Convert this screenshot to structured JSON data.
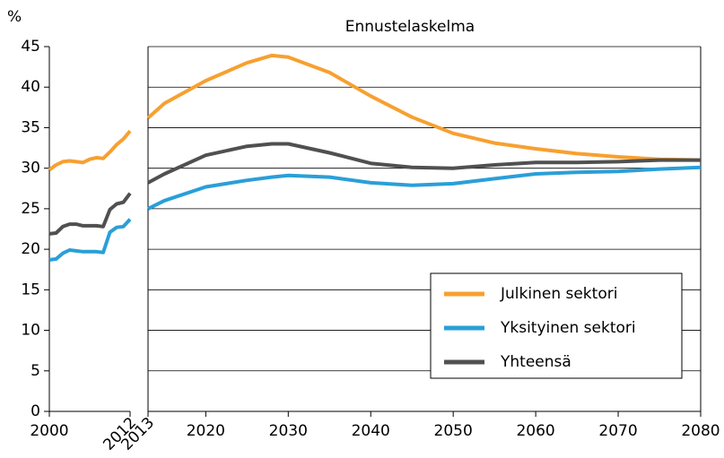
{
  "chart_data": [
    {
      "type": "line",
      "y_label": "%",
      "x": [
        2000,
        2001,
        2002,
        2003,
        2004,
        2005,
        2006,
        2007,
        2008,
        2009,
        2010,
        2011,
        2012
      ],
      "series": [
        {
          "color": "#f7a030",
          "values": [
            29.8,
            30.4,
            30.8,
            30.9,
            30.8,
            30.7,
            31.1,
            31.3,
            31.2,
            32.0,
            32.9,
            33.6,
            34.6
          ]
        },
        {
          "color": "#2a9fd8",
          "values": [
            18.7,
            18.8,
            19.5,
            19.9,
            19.8,
            19.7,
            19.7,
            19.7,
            19.6,
            22.1,
            22.7,
            22.8,
            23.7
          ]
        },
        {
          "color": "#505050",
          "values": [
            21.9,
            22.0,
            22.8,
            23.1,
            23.1,
            22.9,
            22.9,
            22.9,
            22.8,
            24.9,
            25.6,
            25.8,
            26.9
          ]
        }
      ],
      "xlim": [
        2000,
        2012
      ],
      "xticks": [
        2000,
        2012
      ],
      "ylim": [
        0,
        45
      ],
      "yticks": [
        0,
        5,
        10,
        15,
        20,
        25,
        30,
        35,
        40,
        45
      ],
      "grid": false
    },
    {
      "type": "line",
      "title": "Ennustelaskelma",
      "x": [
        2013,
        2015,
        2020,
        2025,
        2028,
        2030,
        2035,
        2040,
        2045,
        2050,
        2055,
        2060,
        2065,
        2070,
        2075,
        2080
      ],
      "series": [
        {
          "name": "Julkinen sektori",
          "color": "#f7a030",
          "values": [
            36.2,
            38.0,
            40.8,
            43.0,
            43.9,
            43.7,
            41.8,
            38.9,
            36.3,
            34.3,
            33.1,
            32.4,
            31.8,
            31.4,
            31.1,
            31.0
          ]
        },
        {
          "name": "Yksityinen sektori",
          "color": "#2a9fd8",
          "values": [
            25.0,
            26.0,
            27.7,
            28.5,
            28.9,
            29.1,
            28.9,
            28.2,
            27.9,
            28.1,
            28.7,
            29.3,
            29.5,
            29.6,
            29.9,
            30.1
          ]
        },
        {
          "name": "Yhteensä",
          "color": "#505050",
          "values": [
            28.2,
            29.3,
            31.6,
            32.7,
            33.0,
            33.0,
            31.9,
            30.6,
            30.1,
            30.0,
            30.4,
            30.7,
            30.7,
            30.8,
            31.0,
            31.0
          ]
        }
      ],
      "xlim": [
        2013,
        2080
      ],
      "xticks": [
        2013,
        2020,
        2030,
        2040,
        2050,
        2060,
        2070,
        2080
      ],
      "ylim": [
        0,
        45
      ],
      "yticks": [
        5,
        10,
        15,
        20,
        25,
        30,
        35,
        40,
        45
      ],
      "grid": true,
      "legend": "lower right"
    }
  ]
}
